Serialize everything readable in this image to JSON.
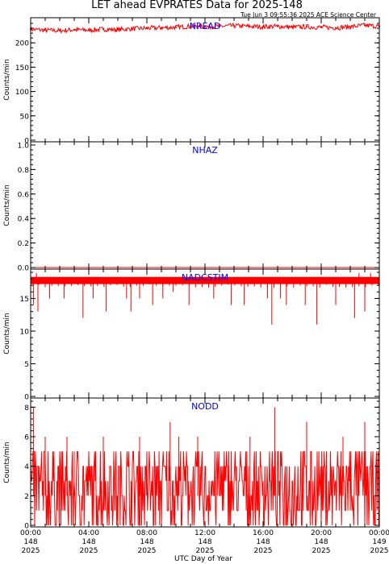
{
  "title": "LET ahead EVPRATES Data for 2025-148",
  "timestamp": "Tue Jun  3 09:55:36 2025 ACE Science Center",
  "xlabel": "UTC Day of Year",
  "colors": {
    "series": "#ff0000",
    "panel_label": "#0000ff",
    "axes": "#000000",
    "background": "#ffffff"
  },
  "chart_data": [
    {
      "type": "line",
      "title": "NREAD",
      "ylabel": "Counts/min",
      "ylim": [
        0,
        245
      ],
      "yticks": [
        "0",
        "50",
        "100",
        "150",
        "200"
      ],
      "ytick_values": [
        0,
        50,
        100,
        150,
        200
      ],
      "xlim": [
        0,
        24
      ],
      "series": [
        {
          "x": [
            0,
            1,
            2,
            3,
            4,
            5,
            6,
            7,
            8,
            9,
            10,
            11,
            12,
            13,
            14,
            15,
            16,
            17,
            18,
            19,
            20,
            21,
            22,
            23,
            24
          ],
          "y": [
            228,
            226,
            225,
            227,
            226,
            228,
            227,
            229,
            230,
            231,
            232,
            234,
            233,
            234,
            235,
            234,
            233,
            234,
            232,
            233,
            232,
            231,
            233,
            236,
            234
          ]
        }
      ]
    },
    {
      "type": "line",
      "title": "NHAZ",
      "ylabel": "Counts/min",
      "ylim": [
        0,
        1.0
      ],
      "yticks": [
        "0.0",
        "0.2",
        "0.4",
        "0.6",
        "0.8",
        "1.0"
      ],
      "ytick_values": [
        0.0,
        0.2,
        0.4,
        0.6,
        0.8,
        1.0
      ],
      "xlim": [
        0,
        24
      ],
      "series": [
        {
          "x": [
            0,
            24
          ],
          "y": [
            0,
            0
          ]
        }
      ]
    },
    {
      "type": "line",
      "title": "NADCSTIM",
      "ylabel": "Counts/min",
      "ylim": [
        0,
        19
      ],
      "yticks": [
        "0",
        "5",
        "10",
        "15"
      ],
      "ytick_values": [
        0,
        5,
        10,
        15
      ],
      "xlim": [
        0,
        24
      ],
      "baseline": 18,
      "series": [
        {
          "x": [
            0.2,
            0.5,
            1.3,
            2.3,
            3.6,
            4.3,
            5.2,
            6.6,
            6.9,
            7.5,
            8.4,
            9.1,
            9.8,
            10.9,
            12.6,
            13.8,
            14.7,
            16.3,
            16.6,
            17.2,
            17.6,
            18.9,
            19.7,
            21.0,
            22.3,
            23.0
          ],
          "y": [
            14,
            13,
            15,
            15,
            12,
            15,
            13,
            15,
            13,
            15,
            14,
            15,
            16,
            14,
            15,
            14,
            14,
            15,
            11,
            15,
            14,
            14,
            11,
            14,
            12,
            13
          ]
        }
      ]
    },
    {
      "type": "line",
      "title": "NODD",
      "ylabel": "Counts/min",
      "ylim": [
        0,
        8.4
      ],
      "yticks": [
        "0",
        "2",
        "4",
        "6",
        "8"
      ],
      "ytick_values": [
        0,
        2,
        4,
        6,
        8
      ],
      "xlim": [
        0,
        24
      ],
      "mean": 2.5,
      "max_y": 8,
      "series": [
        {
          "x": [
            0.2,
            1.0,
            2.5,
            3.0,
            5.0,
            7.5,
            9.6,
            10.2,
            11.5,
            15.1,
            16.8,
            19.0,
            21.5,
            23.0
          ],
          "y": [
            8,
            6,
            6,
            5,
            6,
            6,
            7,
            6,
            6,
            6,
            8,
            7,
            6,
            7
          ]
        }
      ]
    }
  ],
  "xticks": [
    {
      "x": 0,
      "line1": "00:00",
      "line2": "148",
      "line3": "2025"
    },
    {
      "x": 4,
      "line1": "04:00",
      "line2": "148",
      "line3": "2025"
    },
    {
      "x": 8,
      "line1": "08:00",
      "line2": "148",
      "line3": "2025"
    },
    {
      "x": 12,
      "line1": "12:00",
      "line2": "148",
      "line3": "2025"
    },
    {
      "x": 16,
      "line1": "16:00",
      "line2": "148",
      "line3": "2025"
    },
    {
      "x": 20,
      "line1": "20:00",
      "line2": "148",
      "line3": "2025"
    },
    {
      "x": 24,
      "line1": "00:00",
      "line2": "149",
      "line3": "2025"
    }
  ]
}
